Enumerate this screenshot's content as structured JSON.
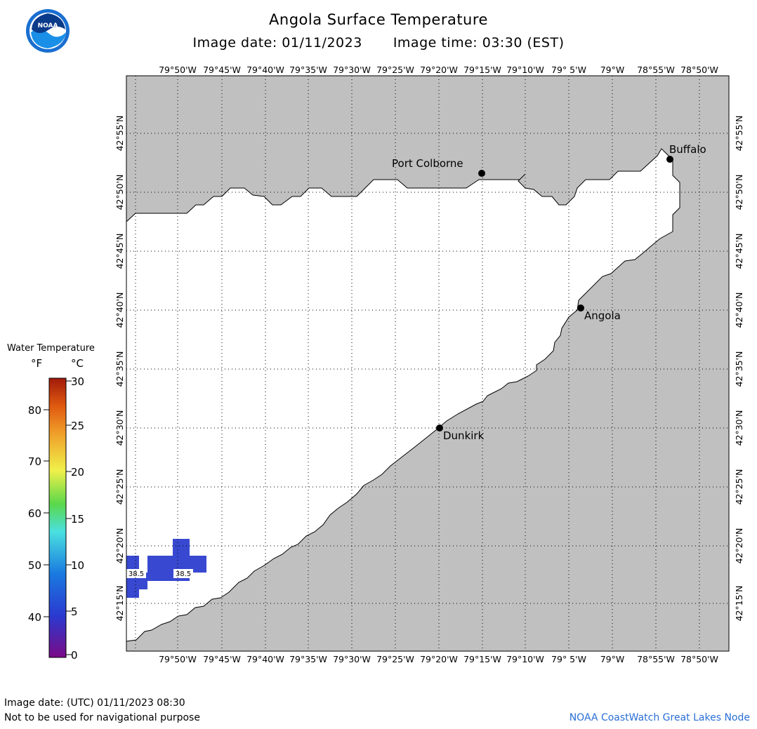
{
  "header": {
    "title": "Angola Surface Temperature",
    "image_date_label": "Image date: 01/11/2023",
    "image_time_label": "Image time: 03:30 (EST)"
  },
  "logo": {
    "text": "NOAA",
    "icon": "noaa-logo-icon",
    "colors": {
      "outer": "#1a6fd0",
      "inner": "#0a3a8a",
      "wave": "#ffffff"
    }
  },
  "map": {
    "colors": {
      "land": "#c0c0c0",
      "water": "#ffffff",
      "water_temp_cells": "#3848d0",
      "grid": "#000000"
    },
    "lon_labels": [
      "79°50'W",
      "79°45'W",
      "79°40'W",
      "79°35'W",
      "79°30'W",
      "79°25'W",
      "79°20'W",
      "79°15'W",
      "79°10'W",
      "79° 5'W",
      "79°W",
      "78°55'W",
      "78°50'W"
    ],
    "lat_labels": [
      "42°55'N",
      "42°50'N",
      "42°45'N",
      "42°40'N",
      "42°35'N",
      "42°30'N",
      "42°25'N",
      "42°20'N",
      "42°15'N"
    ],
    "places": [
      {
        "name": "Port Colborne"
      },
      {
        "name": "Buffalo"
      },
      {
        "name": "Angola"
      },
      {
        "name": "Dunkirk"
      }
    ],
    "temperature_readings": [
      {
        "value": "38.5"
      },
      {
        "value": "38.5"
      }
    ]
  },
  "colorbar": {
    "title": "Water Temperature",
    "unit_f": "°F",
    "unit_c": "°C",
    "f_labels": [
      "80",
      "70",
      "60",
      "50",
      "40"
    ],
    "c_labels": [
      "30",
      "25",
      "20",
      "15",
      "10",
      "5",
      "0"
    ],
    "gradient": [
      "#7a0a86",
      "#2a3ad0",
      "#1a7ae0",
      "#4ae0e0",
      "#5ad84a",
      "#f0f04a",
      "#f0a02a",
      "#e05a10",
      "#a01a0a"
    ]
  },
  "footer": {
    "utc_date": "Image date: (UTC) 01/11/2023  08:30",
    "note": "Not to be used for navigational purpose",
    "credit": "NOAA CoastWatch Great Lakes Node"
  }
}
